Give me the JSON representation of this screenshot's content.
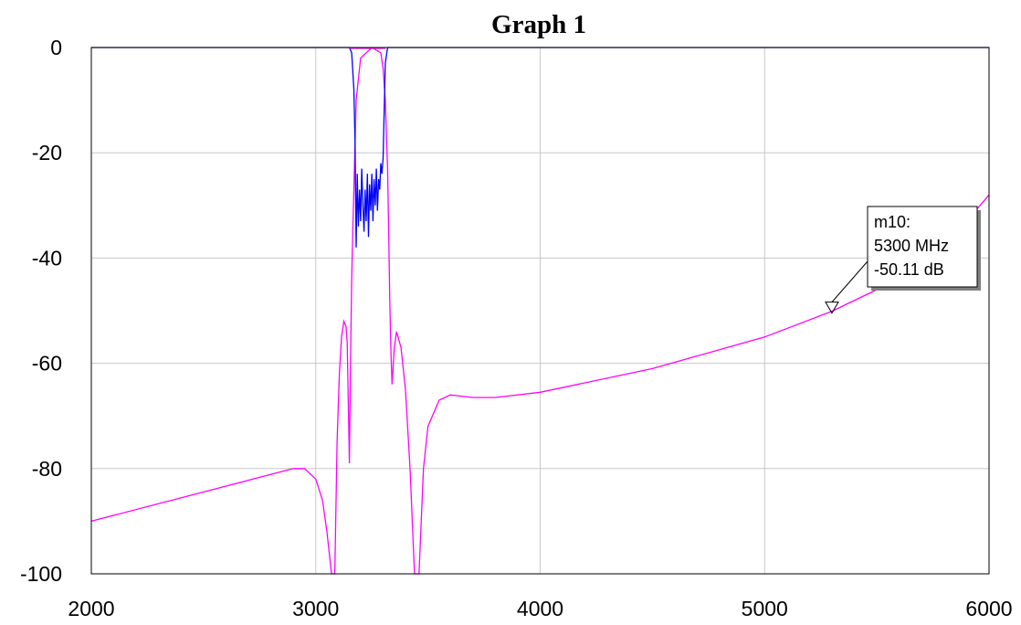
{
  "chart_data": {
    "type": "line",
    "title": "Graph 1",
    "xlabel": "",
    "ylabel": "",
    "xlim": [
      2000,
      6000
    ],
    "ylim": [
      -100,
      0
    ],
    "xticks": [
      2000,
      3000,
      4000,
      5000,
      6000
    ],
    "yticks": [
      0,
      -20,
      -40,
      -60,
      -80,
      -100
    ],
    "grid": true,
    "legend": "none",
    "series": [
      {
        "color": "#0000ff",
        "x": [
          2000,
          3150,
          3160,
          3170,
          3175,
          3180,
          3185,
          3190,
          3195,
          3200,
          3205,
          3210,
          3215,
          3220,
          3225,
          3230,
          3235,
          3240,
          3245,
          3250,
          3255,
          3260,
          3265,
          3270,
          3275,
          3280,
          3285,
          3290,
          3295,
          3300,
          3305,
          3310,
          3320,
          6000
        ],
        "y": [
          0,
          0,
          -1,
          -8,
          -18,
          -38,
          -24,
          -34,
          -27,
          -33,
          -23,
          -30,
          -35,
          -27,
          -33,
          -24,
          -36,
          -26,
          -31,
          -24,
          -33,
          -25,
          -30,
          -23,
          -31,
          -25,
          -27,
          -22,
          -24,
          -21,
          -12,
          -3,
          0,
          0
        ]
      },
      {
        "color": "#ff00ff",
        "x": [
          2000,
          2900,
          2950,
          3000,
          3030,
          3050,
          3070,
          3085,
          3095,
          3105,
          3115,
          3125,
          3135,
          3140,
          3150,
          3155,
          3160,
          3165,
          3170,
          3180,
          3200,
          3250,
          3290,
          3300,
          3310,
          3320,
          3325,
          3330,
          3335,
          3340,
          3350,
          3360,
          3380,
          3400,
          3420,
          3440,
          3460,
          3480,
          3500,
          3550,
          3600,
          3700,
          3800,
          4000,
          4500,
          5000,
          5300,
          5500,
          5800,
          6000
        ],
        "y": [
          -90,
          -80,
          -80,
          -82,
          -86,
          -92,
          -100,
          -100,
          -75,
          -62,
          -55,
          -52,
          -53,
          -56,
          -79,
          -60,
          -44,
          -35,
          -27,
          -10,
          -2,
          0,
          -1,
          -4,
          -10,
          -23,
          -35,
          -48,
          -58,
          -64,
          -57,
          -54,
          -57,
          -65,
          -80,
          -100,
          -100,
          -80,
          -72,
          -67,
          -66,
          -66.5,
          -66.5,
          -65.5,
          -61,
          -55,
          -50.11,
          -46,
          -38,
          -28
        ]
      }
    ],
    "marker": {
      "name": "m10:",
      "freq_text": "5300 MHz",
      "value_text": "-50.11 dB",
      "x": 5300,
      "y": -50.11
    }
  }
}
